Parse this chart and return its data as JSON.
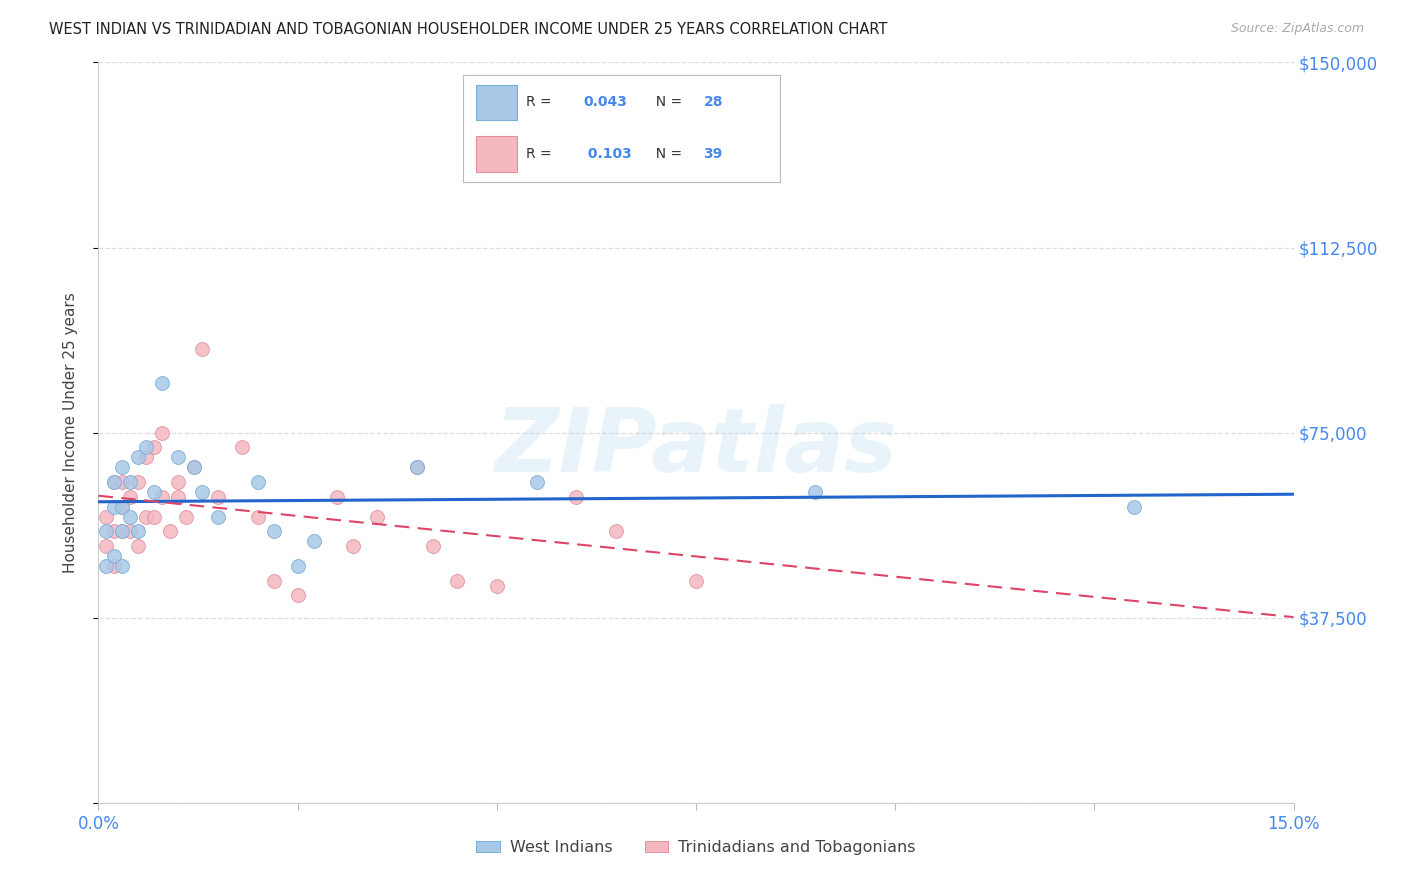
{
  "title": "WEST INDIAN VS TRINIDADIAN AND TOBAGONIAN HOUSEHOLDER INCOME UNDER 25 YEARS CORRELATION CHART",
  "source": "Source: ZipAtlas.com",
  "ylabel": "Householder Income Under 25 years",
  "watermark": "ZIPatlas",
  "xlim": [
    0.0,
    0.15
  ],
  "ylim": [
    0,
    150000
  ],
  "yticks": [
    0,
    37500,
    75000,
    112500,
    150000
  ],
  "ytick_labels": [
    "",
    "$37,500",
    "$75,000",
    "$112,500",
    "$150,000"
  ],
  "legend1_r": "0.043",
  "legend1_n": "28",
  "legend2_r": "0.103",
  "legend2_n": "39",
  "blue_scatter": "#a8c8e8",
  "pink_scatter": "#f4b8c0",
  "blue_edge": "#7aafd4",
  "pink_edge": "#e090a0",
  "line_blue": "#2266cc",
  "line_pink": "#dd4466",
  "bg": "#ffffff",
  "grid_color": "#dddddd",
  "title_color": "#222222",
  "axis_label_color": "#4488ee",
  "text_dark": "#333333",
  "source_color": "#aaaaaa",
  "west_indians_x": [
    0.001,
    0.001,
    0.002,
    0.002,
    0.002,
    0.003,
    0.003,
    0.003,
    0.003,
    0.004,
    0.004,
    0.005,
    0.005,
    0.006,
    0.007,
    0.008,
    0.01,
    0.012,
    0.013,
    0.015,
    0.02,
    0.022,
    0.025,
    0.027,
    0.04,
    0.055,
    0.09,
    0.13
  ],
  "west_indians_y": [
    55000,
    48000,
    60000,
    65000,
    50000,
    60000,
    55000,
    68000,
    48000,
    65000,
    58000,
    70000,
    55000,
    72000,
    63000,
    85000,
    70000,
    68000,
    63000,
    58000,
    65000,
    55000,
    48000,
    53000,
    68000,
    65000,
    63000,
    60000
  ],
  "trini_x": [
    0.001,
    0.001,
    0.002,
    0.002,
    0.002,
    0.003,
    0.003,
    0.003,
    0.004,
    0.004,
    0.005,
    0.005,
    0.006,
    0.006,
    0.007,
    0.007,
    0.008,
    0.008,
    0.009,
    0.01,
    0.01,
    0.011,
    0.012,
    0.013,
    0.015,
    0.018,
    0.02,
    0.022,
    0.025,
    0.03,
    0.032,
    0.035,
    0.04,
    0.042,
    0.045,
    0.05,
    0.06,
    0.065,
    0.075
  ],
  "trini_y": [
    52000,
    58000,
    55000,
    65000,
    48000,
    65000,
    55000,
    60000,
    55000,
    62000,
    52000,
    65000,
    70000,
    58000,
    72000,
    58000,
    75000,
    62000,
    55000,
    62000,
    65000,
    58000,
    68000,
    92000,
    62000,
    72000,
    58000,
    45000,
    42000,
    62000,
    52000,
    58000,
    68000,
    52000,
    45000,
    44000,
    62000,
    55000,
    45000
  ],
  "marker_size": 100
}
